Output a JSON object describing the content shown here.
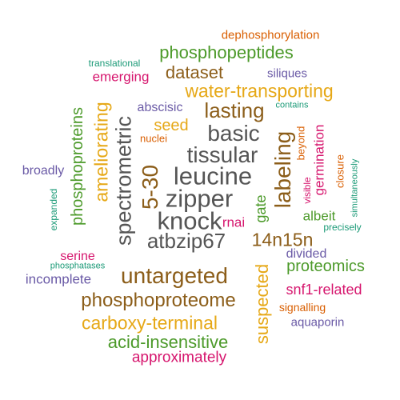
{
  "palette": {
    "brown": "#8C5E1A",
    "gold": "#E6A817",
    "green": "#4C9A2A",
    "magenta": "#D6166E",
    "purple": "#6A5AA6",
    "teal": "#1B9A77",
    "orange": "#D95F02",
    "gray": "#555555"
  },
  "words": [
    "dephosphorylation",
    "translational",
    "phosphopeptides",
    "siliques",
    "emerging",
    "dataset",
    "water-transporting",
    "abscisic",
    "lasting",
    "contains",
    "ameliorating",
    "phosphoproteins",
    "seed",
    "basic",
    "nuclei",
    "spectrometric",
    "tissular",
    "germination",
    "beyond",
    "closure",
    "labeling",
    "broadly",
    "5-30",
    "leucine",
    "zipper",
    "visible",
    "simultaneously",
    "expanded",
    "gate",
    "albeit",
    "knock",
    "rnai",
    "precisely",
    "atbzip67",
    "14n15n",
    "serine",
    "divided",
    "phosphatases",
    "proteomics",
    "incomplete",
    "untargeted",
    "suspected",
    "snf1-related",
    "phosphoproteome",
    "signalling",
    "carboxy-terminal",
    "aquaporin",
    "acid-insensitive",
    "approximately"
  ]
}
